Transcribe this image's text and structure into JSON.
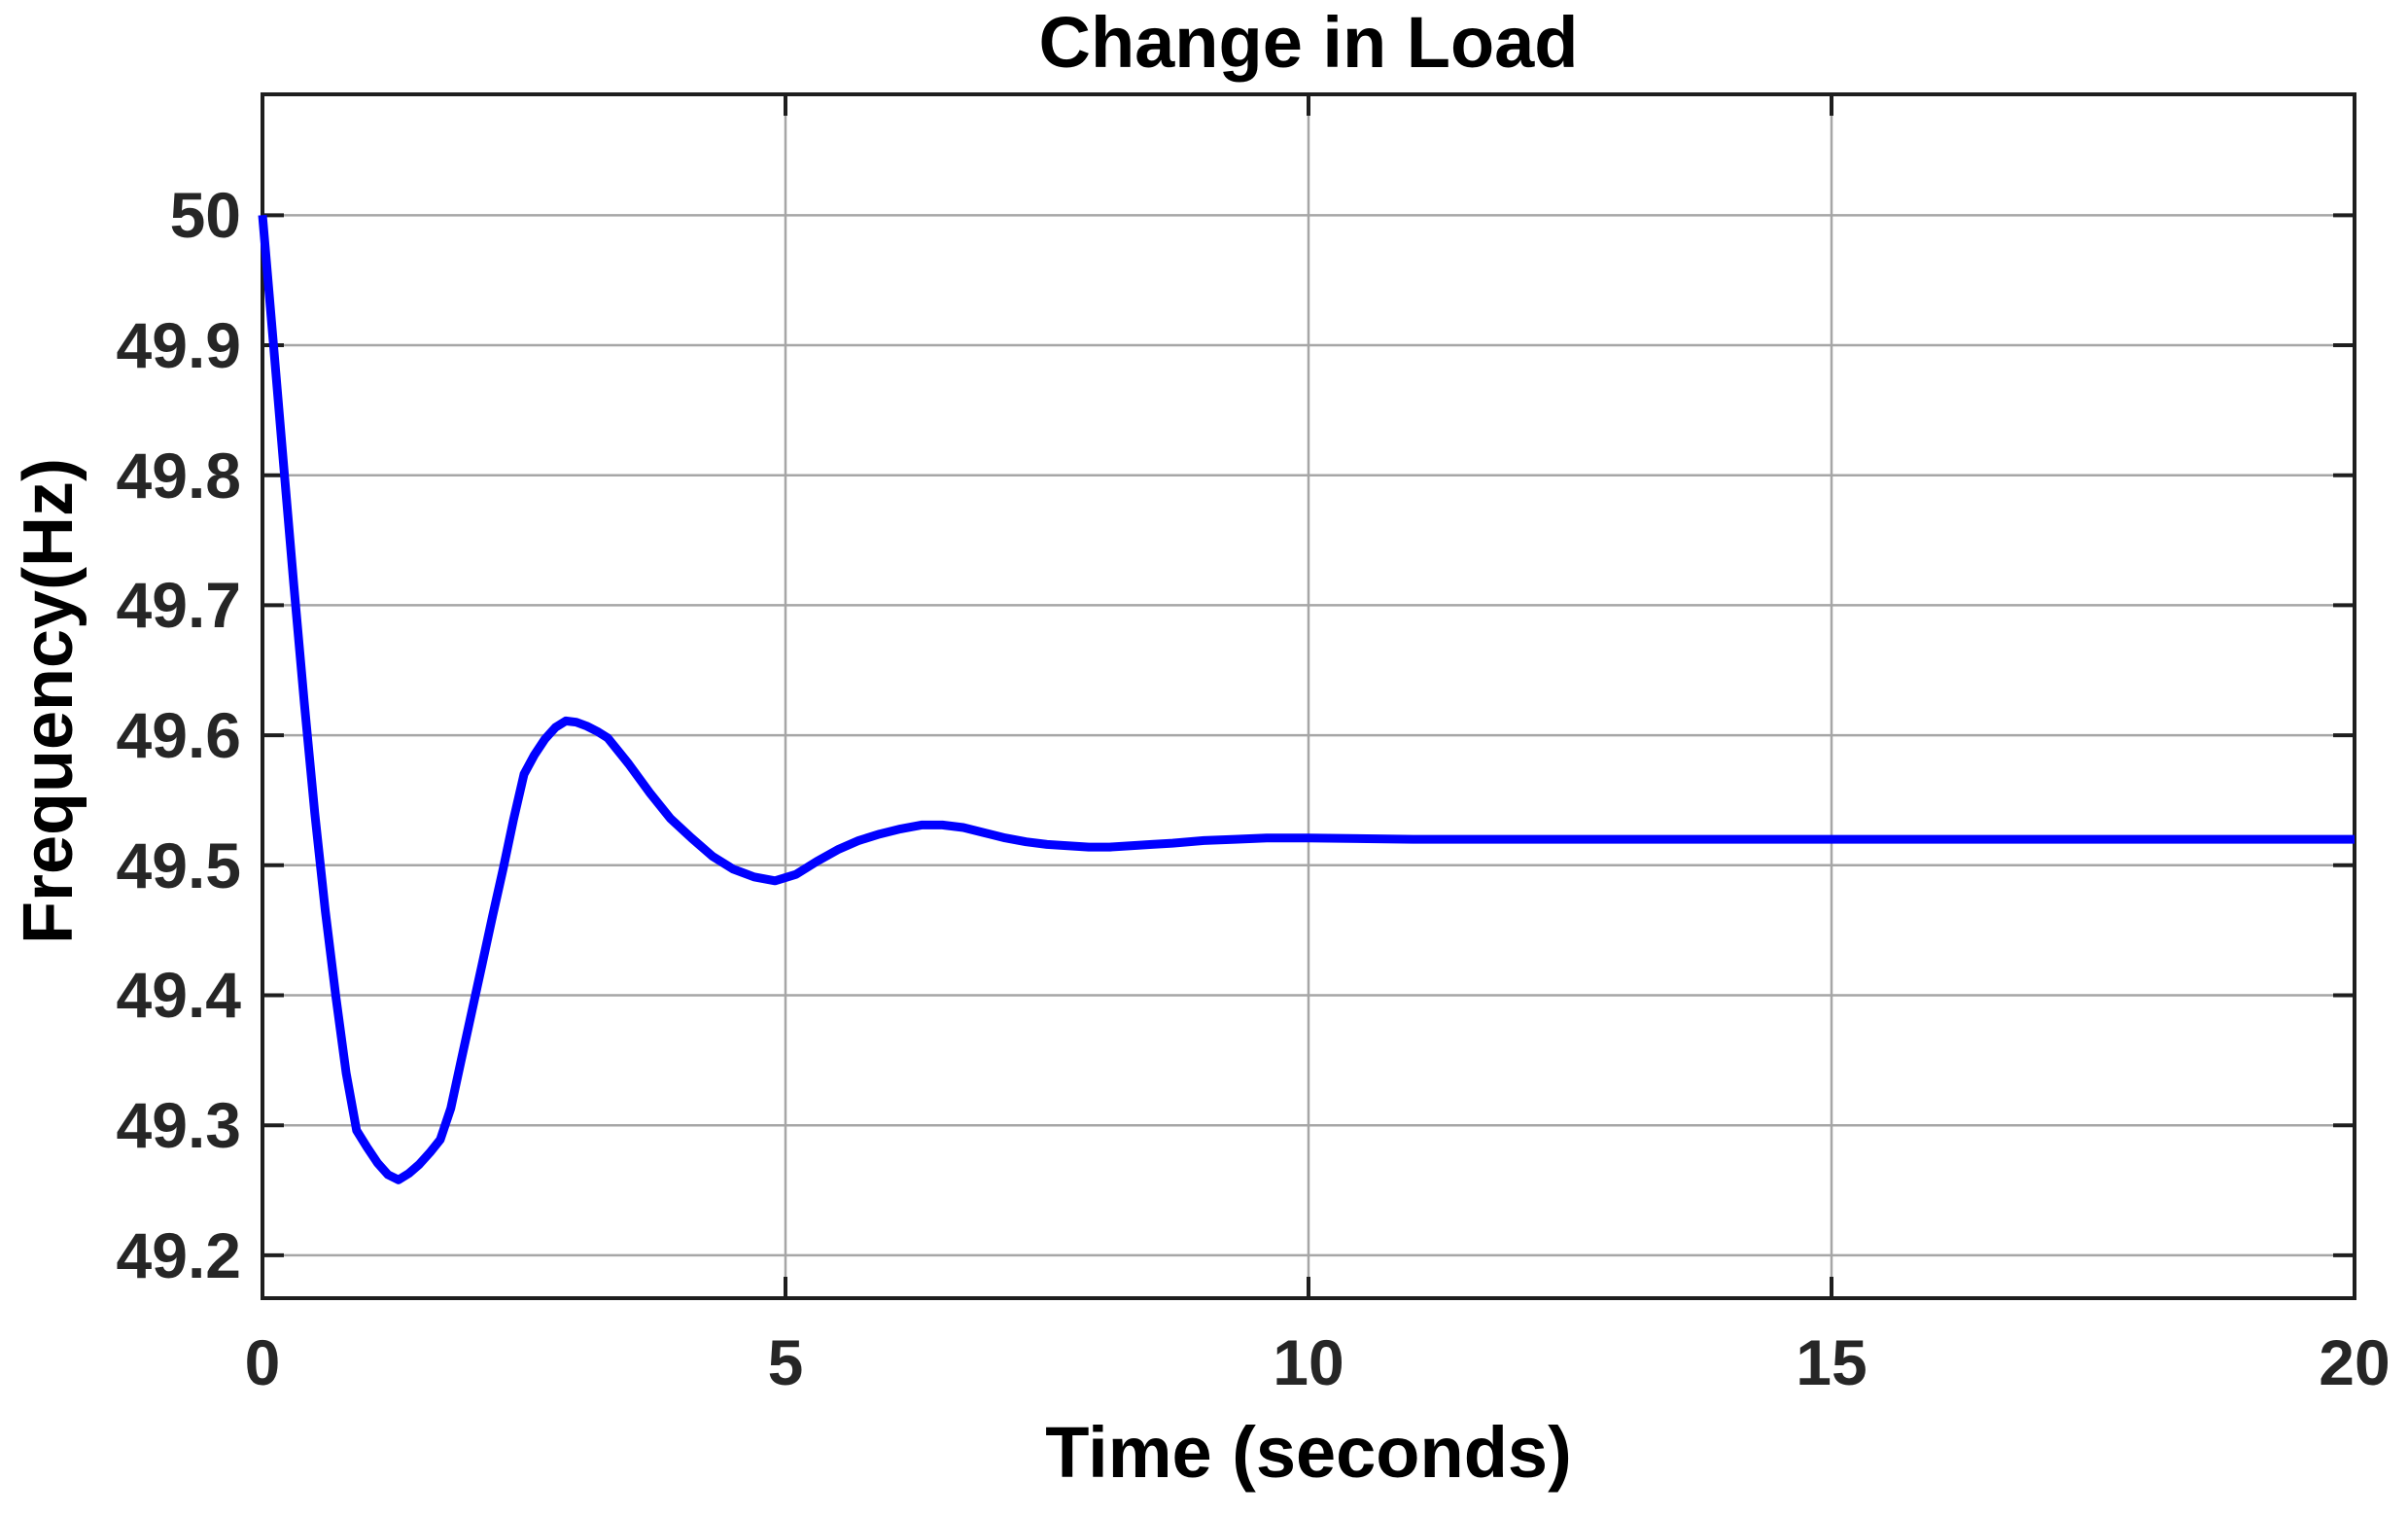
{
  "chart_data": {
    "type": "line",
    "title": "Change in Load",
    "xlabel": "Time (seconds)",
    "ylabel": "Frequency(Hz)",
    "xlim": [
      0,
      20
    ],
    "ylim": [
      49.167,
      50.093
    ],
    "grid": true,
    "legend_position": "none",
    "x_ticks": [
      {
        "value": 0,
        "label": "0"
      },
      {
        "value": 5,
        "label": "5"
      },
      {
        "value": 10,
        "label": "10"
      },
      {
        "value": 15,
        "label": "15"
      },
      {
        "value": 20,
        "label": "20"
      }
    ],
    "y_ticks": [
      {
        "value": 49.2,
        "label": "49.2"
      },
      {
        "value": 49.3,
        "label": "49.3"
      },
      {
        "value": 49.4,
        "label": "49.4"
      },
      {
        "value": 49.5,
        "label": "49.5"
      },
      {
        "value": 49.6,
        "label": "49.6"
      },
      {
        "value": 49.7,
        "label": "49.7"
      },
      {
        "value": 49.8,
        "label": "49.8"
      },
      {
        "value": 49.9,
        "label": "49.9"
      },
      {
        "value": 50,
        "label": "50"
      }
    ],
    "series": [
      {
        "color": "#0000FF",
        "line_width": 9,
        "x": [
          0,
          0.1,
          0.2,
          0.3,
          0.4,
          0.5,
          0.6,
          0.7,
          0.8,
          0.9,
          1.0,
          1.1,
          1.2,
          1.3,
          1.4,
          1.5,
          1.6,
          1.7,
          1.8,
          1.9,
          2.0,
          2.1,
          2.2,
          2.3,
          2.4,
          2.5,
          2.6,
          2.7,
          2.8,
          2.9,
          3.0,
          3.1,
          3.2,
          3.3,
          3.5,
          3.7,
          3.9,
          4.1,
          4.3,
          4.5,
          4.7,
          4.9,
          5.1,
          5.3,
          5.5,
          5.7,
          5.9,
          6.1,
          6.3,
          6.5,
          6.7,
          6.9,
          7.1,
          7.3,
          7.5,
          7.7,
          7.9,
          8.1,
          8.3,
          8.5,
          8.7,
          9.0,
          9.3,
          9.6,
          10.0,
          11.0,
          12.0,
          13.0,
          14.0,
          15.0,
          16.0,
          17.0,
          18.0,
          19.0,
          20.0
        ],
        "y": [
          50.0,
          49.905,
          49.81,
          49.715,
          49.625,
          49.54,
          49.465,
          49.4,
          49.34,
          49.296,
          49.283,
          49.271,
          49.262,
          49.258,
          49.263,
          49.27,
          49.279,
          49.289,
          49.313,
          49.35,
          49.387,
          49.424,
          49.461,
          49.497,
          49.535,
          49.57,
          49.585,
          49.597,
          49.606,
          49.611,
          49.61,
          49.607,
          49.603,
          49.598,
          49.578,
          49.556,
          49.536,
          49.521,
          49.507,
          49.497,
          49.491,
          49.488,
          49.493,
          49.503,
          49.512,
          49.519,
          49.524,
          49.528,
          49.531,
          49.531,
          49.529,
          49.525,
          49.521,
          49.518,
          49.516,
          49.515,
          49.514,
          49.514,
          49.515,
          49.516,
          49.517,
          49.519,
          49.52,
          49.521,
          49.521,
          49.52,
          49.52,
          49.52,
          49.52,
          49.52,
          49.52,
          49.52,
          49.52,
          49.52,
          49.52
        ]
      }
    ]
  },
  "style": {
    "background": "#FFFFFF",
    "line_color": "#0000FF",
    "grid_color": "#A6A6A6",
    "axis_color": "#1E1E1E",
    "tick_label_color": "#262626",
    "text_color": "#000000"
  }
}
